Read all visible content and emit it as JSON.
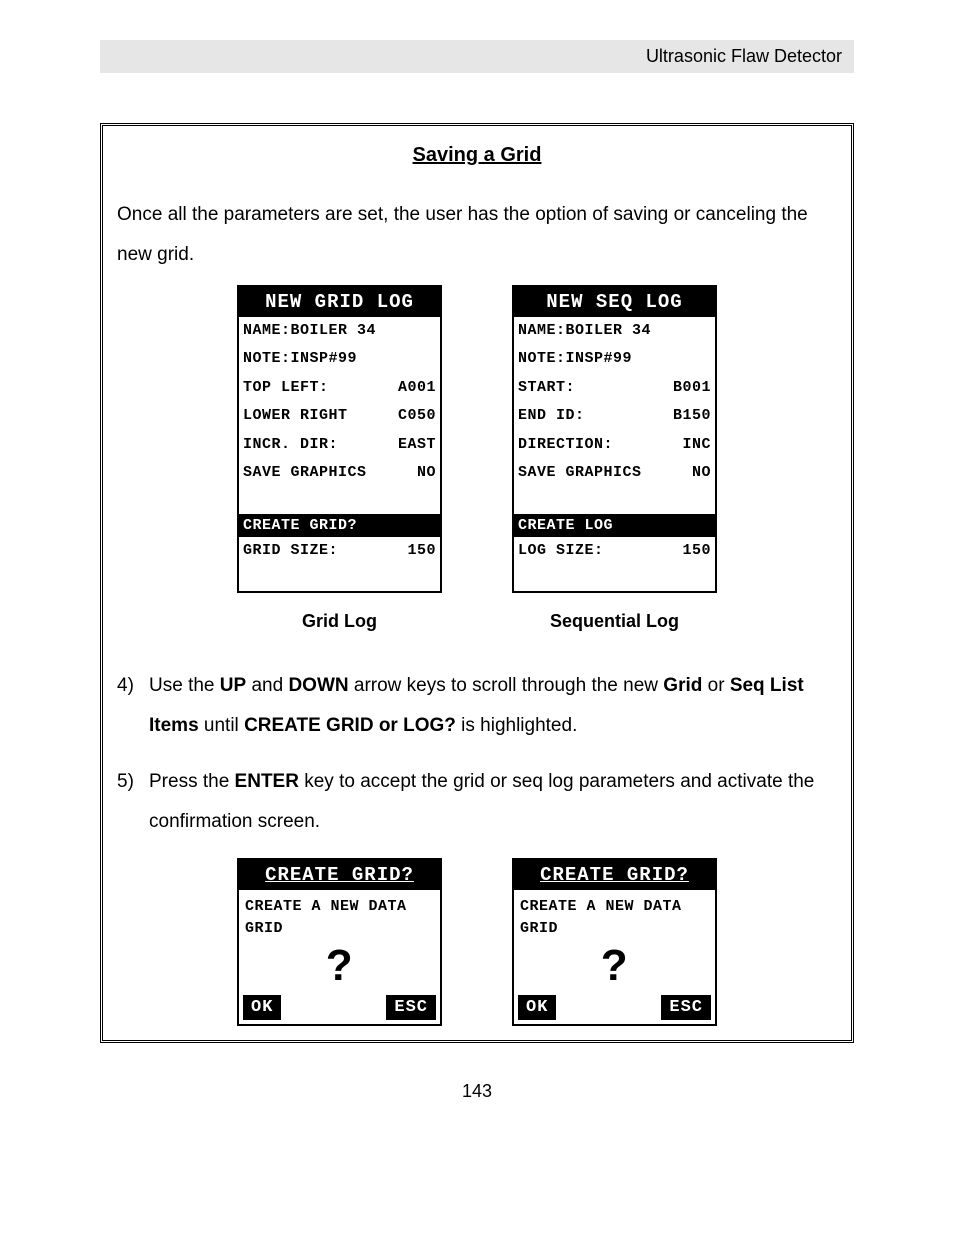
{
  "header": "Ultrasonic Flaw Detector",
  "section_title": "Saving a Grid",
  "intro": "Once all the parameters are set, the user has the option of saving or canceling the new grid.",
  "grid_log": {
    "title": "NEW GRID LOG",
    "rows": [
      {
        "full": "NAME:BOILER 34"
      },
      {
        "full": "NOTE:INSP#99"
      },
      {
        "label": "TOP LEFT:",
        "value": "A001"
      },
      {
        "label": "LOWER RIGHT",
        "value": "C050"
      },
      {
        "label": "INCR. DIR:",
        "value": "EAST"
      },
      {
        "label": "SAVE GRAPHICS",
        "value": "NO"
      }
    ],
    "highlight": "CREATE GRID?",
    "size_row": {
      "label": "GRID SIZE:",
      "value": "150"
    },
    "caption": "Grid Log"
  },
  "seq_log": {
    "title": "NEW SEQ LOG",
    "rows": [
      {
        "full": "NAME:BOILER 34"
      },
      {
        "full": "NOTE:INSP#99"
      },
      {
        "label": "START:",
        "value": "B001"
      },
      {
        "label": "END ID:",
        "value": "B150"
      },
      {
        "label": "DIRECTION:",
        "value": "INC"
      },
      {
        "label": "SAVE GRAPHICS",
        "value": "NO"
      }
    ],
    "highlight": "CREATE LOG",
    "size_row": {
      "label": "LOG SIZE:",
      "value": "150"
    },
    "caption": "Sequential Log"
  },
  "step4_pre": "Use the ",
  "step4_up": "UP",
  "step4_mid1": " and ",
  "step4_down": "DOWN",
  "step4_mid2": " arrow keys to scroll through the new ",
  "step4_grid": "Grid",
  "step4_mid3": " or ",
  "step4_seq": "Seq List Items",
  "step4_mid4": " until ",
  "step4_create": "CREATE GRID or LOG?",
  "step4_end": " is highlighted.",
  "step5_pre": "Press the ",
  "step5_enter": "ENTER",
  "step5_end": " key to accept the grid or seq log parameters and activate the confirmation screen.",
  "confirm": {
    "title": "CREATE GRID?",
    "text": "CREATE A NEW DATA GRID",
    "qmark": "?",
    "ok": "OK",
    "esc": "ESC"
  },
  "page_number": "143"
}
